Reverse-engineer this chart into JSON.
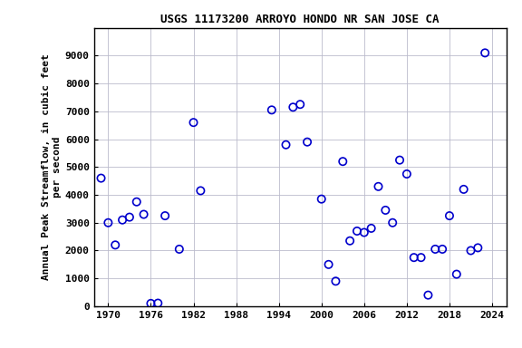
{
  "title": "USGS 11173200 ARROYO HONDO NR SAN JOSE CA",
  "ylabel": "Annual Peak Streamflow, in cubic feet\nper second",
  "xlim": [
    1968,
    2026
  ],
  "ylim": [
    0,
    10000
  ],
  "xticks": [
    1970,
    1976,
    1982,
    1988,
    1994,
    2000,
    2006,
    2012,
    2018,
    2024
  ],
  "yticks": [
    0,
    1000,
    2000,
    3000,
    4000,
    5000,
    6000,
    7000,
    8000,
    9000
  ],
  "years": [
    1969,
    1970,
    1971,
    1972,
    1973,
    1974,
    1975,
    1976,
    1977,
    1978,
    1980,
    1982,
    1983,
    1993,
    1995,
    1996,
    1997,
    1998,
    2000,
    2001,
    2002,
    2003,
    2004,
    2005,
    2006,
    2007,
    2008,
    2009,
    2010,
    2011,
    2012,
    2013,
    2014,
    2015,
    2016,
    2017,
    2018,
    2019,
    2020,
    2021,
    2022,
    2023
  ],
  "flows": [
    4600,
    3000,
    2200,
    3100,
    3200,
    3750,
    3300,
    100,
    110,
    3250,
    2050,
    6600,
    4150,
    7050,
    5800,
    7150,
    7250,
    5900,
    3850,
    1500,
    900,
    5200,
    2350,
    2700,
    2650,
    2800,
    4300,
    3450,
    3000,
    5250,
    4750,
    1750,
    1750,
    400,
    2050,
    2050,
    3250,
    1150,
    4200,
    2000,
    2100,
    9100
  ],
  "marker_color": "#0000cc",
  "marker_facecolor": "none",
  "marker_size": 6,
  "grid_color": "#bbbbcc",
  "background_color": "#ffffff",
  "title_fontsize": 9,
  "label_fontsize": 8,
  "tick_fontsize": 8
}
